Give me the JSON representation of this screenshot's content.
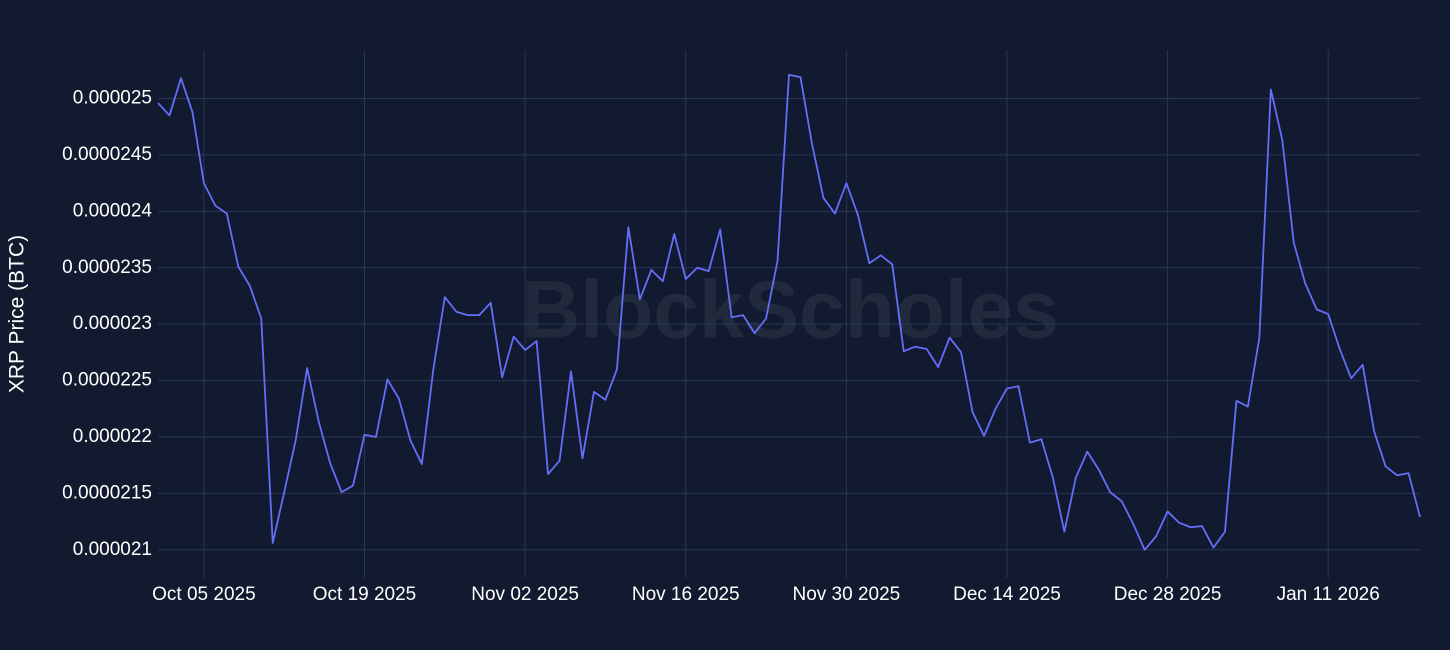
{
  "chart_data": {
    "type": "line",
    "y_label": "XRP Price (BTC)",
    "watermark": "BlockScholes",
    "color": "#636efa",
    "grid": true,
    "x": [
      "2025-10-01",
      "2025-10-02",
      "2025-10-03",
      "2025-10-04",
      "2025-10-05",
      "2025-10-06",
      "2025-10-07",
      "2025-10-08",
      "2025-10-09",
      "2025-10-10",
      "2025-10-11",
      "2025-10-12",
      "2025-10-13",
      "2025-10-14",
      "2025-10-15",
      "2025-10-16",
      "2025-10-17",
      "2025-10-18",
      "2025-10-19",
      "2025-10-20",
      "2025-10-21",
      "2025-10-22",
      "2025-10-23",
      "2025-10-24",
      "2025-10-25",
      "2025-10-26",
      "2025-10-27",
      "2025-10-28",
      "2025-10-29",
      "2025-10-30",
      "2025-10-31",
      "2025-11-01",
      "2025-11-02",
      "2025-11-03",
      "2025-11-04",
      "2025-11-05",
      "2025-11-06",
      "2025-11-07",
      "2025-11-08",
      "2025-11-09",
      "2025-11-10",
      "2025-11-11",
      "2025-11-12",
      "2025-11-13",
      "2025-11-14",
      "2025-11-15",
      "2025-11-16",
      "2025-11-17",
      "2025-11-18",
      "2025-11-19",
      "2025-11-20",
      "2025-11-21",
      "2025-11-22",
      "2025-11-23",
      "2025-11-24",
      "2025-11-25",
      "2025-11-26",
      "2025-11-27",
      "2025-11-28",
      "2025-11-29",
      "2025-11-30",
      "2025-12-01",
      "2025-12-02",
      "2025-12-03",
      "2025-12-04",
      "2025-12-05",
      "2025-12-06",
      "2025-12-07",
      "2025-12-08",
      "2025-12-09",
      "2025-12-10",
      "2025-12-11",
      "2025-12-12",
      "2025-12-13",
      "2025-12-14",
      "2025-12-15",
      "2025-12-16",
      "2025-12-17",
      "2025-12-18",
      "2025-12-19",
      "2025-12-20",
      "2025-12-21",
      "2025-12-22",
      "2025-12-23",
      "2025-12-24",
      "2025-12-25",
      "2025-12-26",
      "2025-12-27",
      "2025-12-28",
      "2025-12-29",
      "2025-12-30",
      "2025-12-31",
      "2026-01-01",
      "2026-01-02",
      "2026-01-03",
      "2026-01-04",
      "2026-01-05",
      "2026-01-06",
      "2026-01-07",
      "2026-01-08",
      "2026-01-09",
      "2026-01-10",
      "2026-01-11",
      "2026-01-12",
      "2026-01-13",
      "2026-01-14",
      "2026-01-15",
      "2026-01-16",
      "2026-01-17",
      "2026-01-18",
      "2026-01-19"
    ],
    "values": [
      2.496e-05,
      2.485e-05,
      2.518e-05,
      2.488e-05,
      2.425e-05,
      2.405e-05,
      2.398e-05,
      2.351e-05,
      2.334e-05,
      2.305e-05,
      2.106e-05,
      2.151e-05,
      2.197e-05,
      2.261e-05,
      2.214e-05,
      2.177e-05,
      2.151e-05,
      2.157e-05,
      2.202e-05,
      2.2e-05,
      2.251e-05,
      2.234e-05,
      2.197e-05,
      2.176e-05,
      2.26e-05,
      2.324e-05,
      2.311e-05,
      2.308e-05,
      2.308e-05,
      2.319e-05,
      2.253e-05,
      2.289e-05,
      2.277e-05,
      2.285e-05,
      2.167e-05,
      2.179e-05,
      2.258e-05,
      2.181e-05,
      2.24e-05,
      2.233e-05,
      2.26e-05,
      2.386e-05,
      2.322e-05,
      2.348e-05,
      2.338e-05,
      2.38e-05,
      2.34e-05,
      2.35e-05,
      2.347e-05,
      2.384e-05,
      2.306e-05,
      2.308e-05,
      2.292e-05,
      2.305e-05,
      2.356e-05,
      2.521e-05,
      2.519e-05,
      2.46e-05,
      2.412e-05,
      2.398e-05,
      2.425e-05,
      2.397e-05,
      2.354e-05,
      2.361e-05,
      2.353e-05,
      2.276e-05,
      2.28e-05,
      2.278e-05,
      2.262e-05,
      2.288e-05,
      2.275e-05,
      2.222e-05,
      2.201e-05,
      2.225e-05,
      2.243e-05,
      2.245e-05,
      2.195e-05,
      2.198e-05,
      2.164e-05,
      2.116e-05,
      2.164e-05,
      2.187e-05,
      2.171e-05,
      2.151e-05,
      2.143e-05,
      2.123e-05,
      2.1e-05,
      2.112e-05,
      2.134e-05,
      2.124e-05,
      2.12e-05,
      2.121e-05,
      2.102e-05,
      2.116e-05,
      2.232e-05,
      2.227e-05,
      2.288e-05,
      2.508e-05,
      2.463e-05,
      2.372e-05,
      2.336e-05,
      2.313e-05,
      2.309e-05,
      2.278e-05,
      2.252e-05,
      2.264e-05,
      2.205e-05,
      2.174e-05,
      2.166e-05,
      2.168e-05,
      2.129e-05
    ],
    "xlim": [
      "2025-10-01",
      "2026-01-19"
    ],
    "xticks": [
      {
        "value": "2025-10-05",
        "label": "Oct 05 2025"
      },
      {
        "value": "2025-10-19",
        "label": "Oct 19 2025"
      },
      {
        "value": "2025-11-02",
        "label": "Nov 02 2025"
      },
      {
        "value": "2025-11-16",
        "label": "Nov 16 2025"
      },
      {
        "value": "2025-11-30",
        "label": "Nov 30 2025"
      },
      {
        "value": "2025-12-14",
        "label": "Dec 14 2025"
      },
      {
        "value": "2025-12-28",
        "label": "Dec 28 2025"
      },
      {
        "value": "2026-01-11",
        "label": "Jan 11 2026"
      }
    ],
    "ylim": [
      2.075e-05,
      2.543e-05
    ],
    "yticks": [
      2.1e-05,
      2.15e-05,
      2.2e-05,
      2.25e-05,
      2.3e-05,
      2.35e-05,
      2.4e-05,
      2.45e-05,
      2.5e-05
    ]
  }
}
